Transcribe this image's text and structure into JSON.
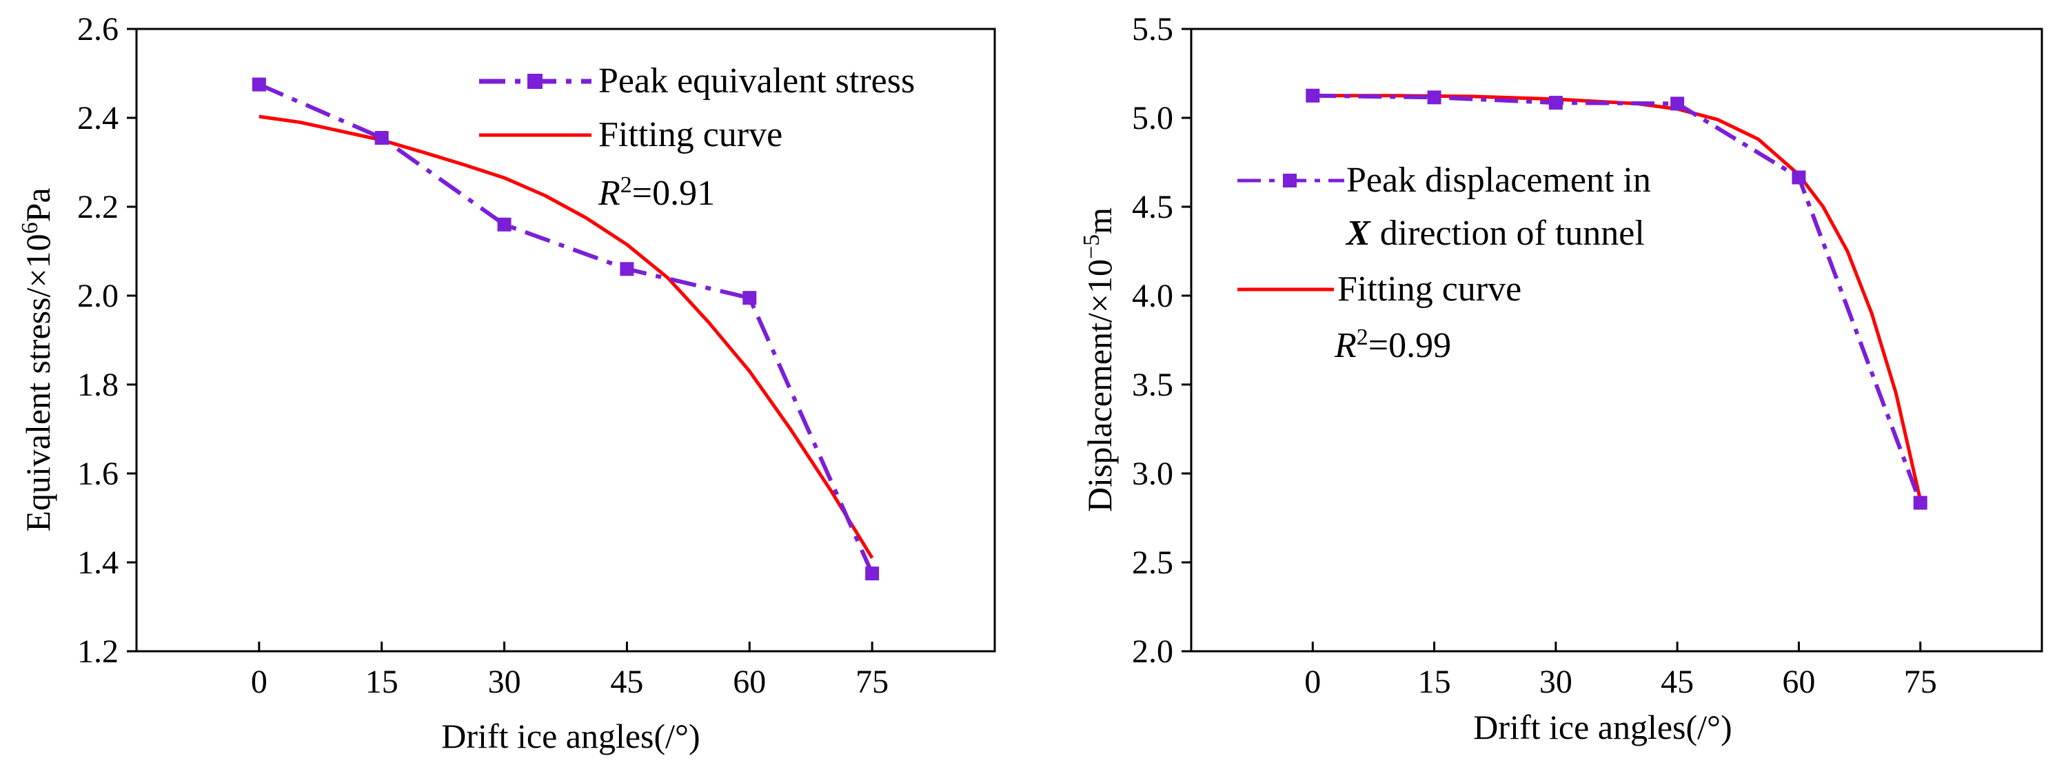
{
  "chart_data": [
    {
      "type": "line",
      "xlabel": "Drift ice angles(/°)",
      "ylabel": "Equivalent stress/×10⁶Pa",
      "ylabel_parts": {
        "base": "Equivalent stress/×10",
        "exp": "6",
        "unit": "Pa"
      },
      "xlim": [
        -15,
        90
      ],
      "ylim": [
        1.2,
        2.6
      ],
      "x_ticks": [
        0,
        15,
        30,
        45,
        60,
        75
      ],
      "x_tick_labels": [
        "0",
        "15",
        "30",
        "45",
        "60",
        "75"
      ],
      "y_ticks": [
        1.2,
        1.4,
        1.6,
        1.8,
        2.0,
        2.2,
        2.4,
        2.6
      ],
      "y_tick_labels": [
        "1.2",
        "1.4",
        "1.6",
        "1.8",
        "2.0",
        "2.2",
        "2.4",
        "2.6"
      ],
      "series": [
        {
          "name": "Peak equivalent stress",
          "style": "dash-dot-markers",
          "color": "#7b1fd8",
          "x": [
            0,
            15,
            30,
            45,
            60,
            75
          ],
          "values": [
            2.475,
            2.355,
            2.16,
            2.06,
            1.995,
            1.375
          ]
        },
        {
          "name": "Fitting curve",
          "style": "solid",
          "color": "#ff0000",
          "x": [
            0,
            5,
            10,
            15,
            20,
            25,
            30,
            35,
            40,
            45,
            50,
            55,
            60,
            65,
            70,
            75
          ],
          "values": [
            2.403,
            2.39,
            2.37,
            2.35,
            2.323,
            2.295,
            2.265,
            2.225,
            2.175,
            2.115,
            2.04,
            1.94,
            1.83,
            1.7,
            1.56,
            1.41
          ]
        }
      ],
      "legend": {
        "position": "top-right",
        "entries": [
          "Peak equivalent stress",
          "Fitting curve"
        ],
        "r2_prefix": "R",
        "r2_exp": "2",
        "r2_value": "=0.91"
      }
    },
    {
      "type": "line",
      "xlabel": "Drift ice angles(/°)",
      "ylabel": "Displacement/×10⁻⁵m",
      "ylabel_parts": {
        "base": "Displacement/×10",
        "exp": "−5",
        "unit": "m"
      },
      "xlim": [
        -15,
        90
      ],
      "ylim": [
        2.0,
        5.5
      ],
      "x_ticks": [
        0,
        15,
        30,
        45,
        60,
        75
      ],
      "x_tick_labels": [
        "0",
        "15",
        "30",
        "45",
        "60",
        "75"
      ],
      "y_ticks": [
        2.0,
        2.5,
        3.0,
        3.5,
        4.0,
        4.5,
        5.0,
        5.5
      ],
      "y_tick_labels": [
        "2.0",
        "2.5",
        "3.0",
        "3.5",
        "4.0",
        "4.5",
        "5.0",
        "5.5"
      ],
      "series": [
        {
          "name": "Peak displacement in X direction of tunnel",
          "style": "dash-dot-markers",
          "color": "#7b1fd8",
          "x": [
            0,
            15,
            30,
            45,
            60,
            75
          ],
          "values": [
            5.125,
            5.115,
            5.085,
            5.08,
            4.665,
            2.835
          ]
        },
        {
          "name": "Fitting curve",
          "style": "solid",
          "color": "#ff0000",
          "x": [
            0,
            10,
            20,
            30,
            40,
            45,
            50,
            55,
            60,
            63,
            66,
            69,
            72,
            75
          ],
          "values": [
            5.125,
            5.125,
            5.12,
            5.105,
            5.08,
            5.05,
            4.99,
            4.88,
            4.68,
            4.5,
            4.25,
            3.9,
            3.45,
            2.85
          ]
        }
      ],
      "legend": {
        "position": "middle-left",
        "entries": [
          "Peak displacement in",
          "X",
          "direction of tunnel",
          "Fitting  curve"
        ],
        "r2_prefix": "R",
        "r2_exp": "2",
        "r2_value": "=0.99"
      }
    }
  ]
}
